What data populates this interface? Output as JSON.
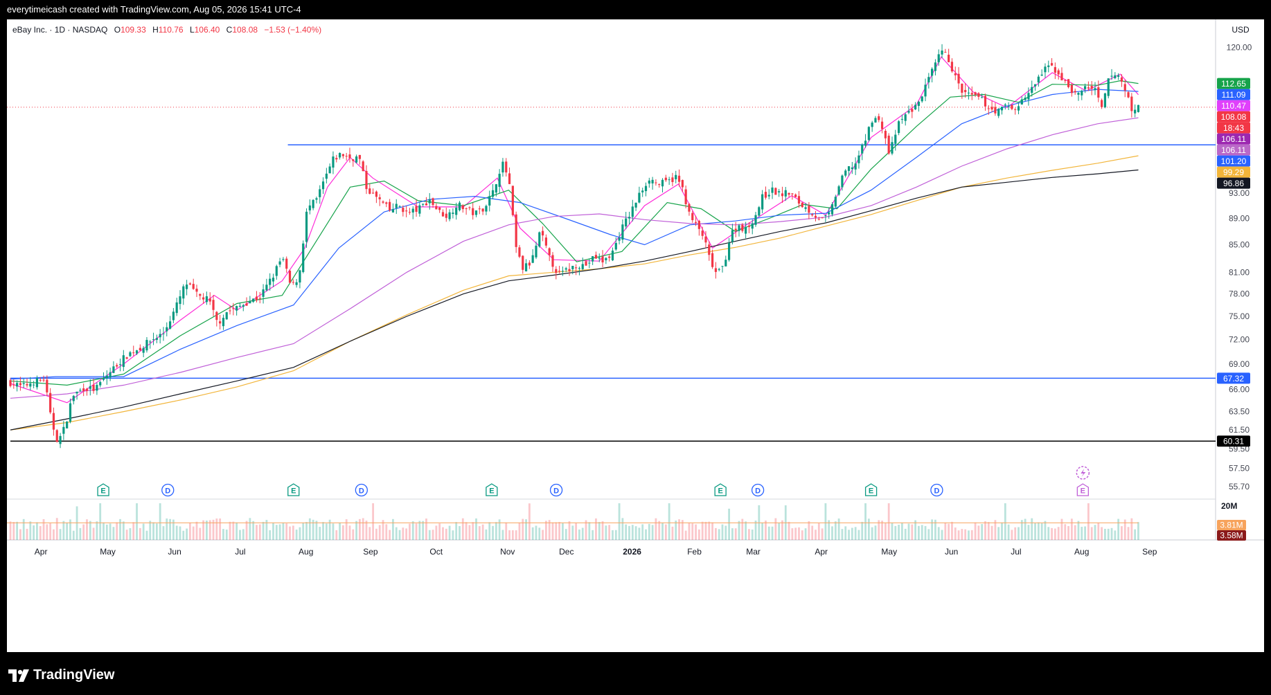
{
  "header": {
    "attribution": "everytimeicash created with TradingView.com, Aug 05, 2026 15:41 UTC-4"
  },
  "legend": {
    "symbol": "eBay Inc. · 1D · NASDAQ",
    "open_label": "O",
    "open": "109.33",
    "high_label": "H",
    "high": "110.76",
    "low_label": "L",
    "low": "106.40",
    "close_label": "C",
    "close": "108.08",
    "change": "−1.53 (−1.40%)"
  },
  "price_axis": {
    "currency": "USD"
  },
  "branding": {
    "logo_text": "TradingView",
    "logo_icon": "tradingview-logo-icon"
  },
  "chart_data": {
    "type": "candlestick",
    "symbol": "eBay Inc.",
    "interval": "1D",
    "exchange": "NASDAQ",
    "currency": "USD",
    "scale": "log",
    "y_range": [
      54.5,
      126
    ],
    "y_ticks": [
      "120.00",
      "93.00",
      "89.00",
      "85.00",
      "81.00",
      "78.00",
      "75.00",
      "72.00",
      "69.00",
      "66.00",
      "63.50",
      "61.50",
      "59.50",
      "57.50",
      "55.70"
    ],
    "x_ticks": [
      "Apr",
      "May",
      "Jun",
      "Jul",
      "Aug",
      "Sep",
      "Oct",
      "Nov",
      "Dec",
      "2026",
      "Feb",
      "Mar",
      "Apr",
      "May",
      "Jun",
      "Jul",
      "Aug",
      "Sep"
    ],
    "x_tick_pos": [
      0.027,
      0.086,
      0.145,
      0.203,
      0.261,
      0.318,
      0.376,
      0.439,
      0.491,
      0.549,
      0.604,
      0.656,
      0.716,
      0.776,
      0.831,
      0.888,
      0.946,
      1.006
    ],
    "price_path": [
      [
        0.0,
        66.8
      ],
      [
        0.01,
        66.3
      ],
      [
        0.02,
        66.9
      ],
      [
        0.03,
        67.2
      ],
      [
        0.036,
        62.5
      ],
      [
        0.042,
        60.2
      ],
      [
        0.048,
        61.8
      ],
      [
        0.055,
        65.3
      ],
      [
        0.065,
        66.2
      ],
      [
        0.075,
        66.0
      ],
      [
        0.085,
        67.6
      ],
      [
        0.095,
        69.1
      ],
      [
        0.105,
        70.3
      ],
      [
        0.115,
        71.0
      ],
      [
        0.125,
        72.0
      ],
      [
        0.135,
        72.8
      ],
      [
        0.145,
        75.8
      ],
      [
        0.155,
        79.5
      ],
      [
        0.165,
        77.8
      ],
      [
        0.175,
        77.2
      ],
      [
        0.183,
        74.0
      ],
      [
        0.19,
        75.5
      ],
      [
        0.2,
        76.1
      ],
      [
        0.21,
        77.0
      ],
      [
        0.22,
        77.5
      ],
      [
        0.232,
        80.5
      ],
      [
        0.24,
        83.2
      ],
      [
        0.248,
        78.8
      ],
      [
        0.255,
        80.5
      ],
      [
        0.262,
        90.5
      ],
      [
        0.27,
        91.8
      ],
      [
        0.278,
        95.5
      ],
      [
        0.285,
        98.6
      ],
      [
        0.292,
        99.6
      ],
      [
        0.3,
        98.9
      ],
      [
        0.308,
        99.0
      ],
      [
        0.314,
        94.0
      ],
      [
        0.32,
        92.8
      ],
      [
        0.328,
        91.5
      ],
      [
        0.335,
        90.2
      ],
      [
        0.343,
        91.1
      ],
      [
        0.35,
        89.8
      ],
      [
        0.36,
        90.4
      ],
      [
        0.37,
        92.0
      ],
      [
        0.378,
        90.1
      ],
      [
        0.386,
        89.3
      ],
      [
        0.394,
        91.2
      ],
      [
        0.402,
        90.6
      ],
      [
        0.41,
        89.7
      ],
      [
        0.418,
        90.7
      ],
      [
        0.426,
        93.1
      ],
      [
        0.434,
        98.1
      ],
      [
        0.44,
        95.5
      ],
      [
        0.446,
        84.8
      ],
      [
        0.452,
        81.5
      ],
      [
        0.46,
        82.4
      ],
      [
        0.468,
        87.0
      ],
      [
        0.476,
        83.0
      ],
      [
        0.484,
        80.7
      ],
      [
        0.492,
        81.3
      ],
      [
        0.5,
        82.1
      ],
      [
        0.508,
        82.0
      ],
      [
        0.516,
        83.2
      ],
      [
        0.524,
        82.5
      ],
      [
        0.532,
        84.0
      ],
      [
        0.54,
        87.5
      ],
      [
        0.548,
        90.0
      ],
      [
        0.556,
        93.0
      ],
      [
        0.564,
        95.5
      ],
      [
        0.572,
        94.5
      ],
      [
        0.58,
        94.8
      ],
      [
        0.588,
        95.7
      ],
      [
        0.594,
        93.5
      ],
      [
        0.6,
        89.2
      ],
      [
        0.606,
        87.8
      ],
      [
        0.612,
        86.2
      ],
      [
        0.618,
        82.5
      ],
      [
        0.624,
        80.6
      ],
      [
        0.63,
        82.0
      ],
      [
        0.636,
        86.5
      ],
      [
        0.642,
        88.0
      ],
      [
        0.65,
        87.2
      ],
      [
        0.658,
        89.5
      ],
      [
        0.664,
        92.3
      ],
      [
        0.672,
        93.5
      ],
      [
        0.68,
        92.8
      ],
      [
        0.688,
        93.1
      ],
      [
        0.696,
        91.5
      ],
      [
        0.704,
        90.4
      ],
      [
        0.712,
        89.3
      ],
      [
        0.718,
        88.7
      ],
      [
        0.724,
        89.8
      ],
      [
        0.73,
        93.5
      ],
      [
        0.738,
        96.8
      ],
      [
        0.746,
        97.9
      ],
      [
        0.754,
        101.5
      ],
      [
        0.762,
        106.5
      ],
      [
        0.77,
        104.5
      ],
      [
        0.776,
        99.5
      ],
      [
        0.784,
        104.8
      ],
      [
        0.792,
        107.0
      ],
      [
        0.8,
        108.2
      ],
      [
        0.808,
        112.0
      ],
      [
        0.816,
        116.0
      ],
      [
        0.822,
        119.2
      ],
      [
        0.828,
        117.8
      ],
      [
        0.834,
        114.0
      ],
      [
        0.84,
        111.0
      ],
      [
        0.848,
        110.2
      ],
      [
        0.856,
        109.8
      ],
      [
        0.864,
        108.0
      ],
      [
        0.872,
        107.2
      ],
      [
        0.88,
        108.5
      ],
      [
        0.886,
        107.5
      ],
      [
        0.894,
        109.5
      ],
      [
        0.902,
        111.5
      ],
      [
        0.91,
        114.5
      ],
      [
        0.918,
        116.3
      ],
      [
        0.926,
        114.5
      ],
      [
        0.934,
        112.0
      ],
      [
        0.942,
        110.2
      ],
      [
        0.95,
        112.2
      ],
      [
        0.958,
        111.2
      ],
      [
        0.964,
        107.5
      ],
      [
        0.97,
        113.8
      ],
      [
        0.978,
        114.5
      ],
      [
        0.986,
        110.5
      ],
      [
        0.992,
        106.7
      ],
      [
        0.996,
        108.08
      ]
    ],
    "moving_averages": [
      {
        "color": "#ff2bd8",
        "values": [
          [
            0,
            66.7
          ],
          [
            0.05,
            64.5
          ],
          [
            0.1,
            69.0
          ],
          [
            0.15,
            74.5
          ],
          [
            0.18,
            77.8
          ],
          [
            0.2,
            75.8
          ],
          [
            0.24,
            79.8
          ],
          [
            0.26,
            84.5
          ],
          [
            0.28,
            94.0
          ],
          [
            0.3,
            99.0
          ],
          [
            0.32,
            95.5
          ],
          [
            0.36,
            90.8
          ],
          [
            0.4,
            90.8
          ],
          [
            0.43,
            95.5
          ],
          [
            0.45,
            87.5
          ],
          [
            0.48,
            82.8
          ],
          [
            0.52,
            82.6
          ],
          [
            0.56,
            91.0
          ],
          [
            0.59,
            94.5
          ],
          [
            0.62,
            84.5
          ],
          [
            0.65,
            88.0
          ],
          [
            0.69,
            92.6
          ],
          [
            0.72,
            89.5
          ],
          [
            0.76,
            102.5
          ],
          [
            0.8,
            108.5
          ],
          [
            0.822,
            118.0
          ],
          [
            0.85,
            111.0
          ],
          [
            0.88,
            108.0
          ],
          [
            0.92,
            114.8
          ],
          [
            0.95,
            111.2
          ],
          [
            0.98,
            114.5
          ],
          [
            0.996,
            110.47
          ]
        ]
      },
      {
        "color": "#16a34a",
        "values": [
          [
            0,
            67.0
          ],
          [
            0.05,
            66.5
          ],
          [
            0.1,
            67.8
          ],
          [
            0.15,
            72.5
          ],
          [
            0.2,
            76.7
          ],
          [
            0.24,
            77.8
          ],
          [
            0.27,
            85.5
          ],
          [
            0.3,
            94.0
          ],
          [
            0.33,
            95.0
          ],
          [
            0.36,
            91.8
          ],
          [
            0.4,
            91.0
          ],
          [
            0.44,
            93.5
          ],
          [
            0.47,
            88.2
          ],
          [
            0.5,
            82.5
          ],
          [
            0.54,
            84.0
          ],
          [
            0.58,
            91.5
          ],
          [
            0.61,
            90.5
          ],
          [
            0.64,
            87.0
          ],
          [
            0.67,
            89.0
          ],
          [
            0.7,
            91.2
          ],
          [
            0.73,
            90.5
          ],
          [
            0.76,
            97.0
          ],
          [
            0.8,
            104.5
          ],
          [
            0.83,
            110.0
          ],
          [
            0.86,
            110.5
          ],
          [
            0.89,
            109.0
          ],
          [
            0.92,
            112.5
          ],
          [
            0.96,
            112.3
          ],
          [
            0.98,
            113.2
          ],
          [
            0.996,
            112.65
          ]
        ]
      },
      {
        "color": "#2962ff",
        "values": [
          [
            0,
            67.2
          ],
          [
            0.04,
            67.5
          ],
          [
            0.1,
            67.5
          ],
          [
            0.15,
            70.8
          ],
          [
            0.2,
            73.8
          ],
          [
            0.25,
            76.5
          ],
          [
            0.29,
            84.5
          ],
          [
            0.33,
            90.0
          ],
          [
            0.37,
            92.0
          ],
          [
            0.41,
            92.5
          ],
          [
            0.45,
            91.5
          ],
          [
            0.49,
            89.0
          ],
          [
            0.53,
            86.5
          ],
          [
            0.56,
            85.0
          ],
          [
            0.6,
            88.0
          ],
          [
            0.64,
            88.6
          ],
          [
            0.68,
            89.5
          ],
          [
            0.72,
            89.8
          ],
          [
            0.76,
            93.5
          ],
          [
            0.8,
            99.0
          ],
          [
            0.84,
            105.0
          ],
          [
            0.88,
            108.3
          ],
          [
            0.92,
            110.5
          ],
          [
            0.96,
            111.5
          ],
          [
            0.996,
            111.09
          ]
        ]
      },
      {
        "color": "#c060d8",
        "values": [
          [
            0,
            65.0
          ],
          [
            0.05,
            65.5
          ],
          [
            0.1,
            66.5
          ],
          [
            0.15,
            68.0
          ],
          [
            0.2,
            69.8
          ],
          [
            0.25,
            71.5
          ],
          [
            0.3,
            76.0
          ],
          [
            0.35,
            81.0
          ],
          [
            0.4,
            85.5
          ],
          [
            0.44,
            88.0
          ],
          [
            0.48,
            89.3
          ],
          [
            0.52,
            89.7
          ],
          [
            0.56,
            88.8
          ],
          [
            0.6,
            88.2
          ],
          [
            0.64,
            88.0
          ],
          [
            0.68,
            88.5
          ],
          [
            0.72,
            89.2
          ],
          [
            0.76,
            91.0
          ],
          [
            0.8,
            94.0
          ],
          [
            0.84,
            97.5
          ],
          [
            0.88,
            100.5
          ],
          [
            0.92,
            103.0
          ],
          [
            0.96,
            105.0
          ],
          [
            0.996,
            106.11
          ]
        ]
      },
      {
        "color": "#f2b53a",
        "values": [
          [
            0,
            61.5
          ],
          [
            0.05,
            62.3
          ],
          [
            0.1,
            63.5
          ],
          [
            0.15,
            64.8
          ],
          [
            0.2,
            66.3
          ],
          [
            0.25,
            68.2
          ],
          [
            0.3,
            71.8
          ],
          [
            0.35,
            75.2
          ],
          [
            0.4,
            78.5
          ],
          [
            0.44,
            80.5
          ],
          [
            0.48,
            81.0
          ],
          [
            0.52,
            81.5
          ],
          [
            0.56,
            82.2
          ],
          [
            0.6,
            83.5
          ],
          [
            0.64,
            84.6
          ],
          [
            0.68,
            86.0
          ],
          [
            0.72,
            87.8
          ],
          [
            0.76,
            89.6
          ],
          [
            0.8,
            91.8
          ],
          [
            0.84,
            94.0
          ],
          [
            0.88,
            95.5
          ],
          [
            0.92,
            96.8
          ],
          [
            0.96,
            98.0
          ],
          [
            0.996,
            99.29
          ]
        ]
      },
      {
        "color": "#131722",
        "values": [
          [
            0,
            61.5
          ],
          [
            0.05,
            62.7
          ],
          [
            0.1,
            64.0
          ],
          [
            0.15,
            65.5
          ],
          [
            0.2,
            67.0
          ],
          [
            0.25,
            68.6
          ],
          [
            0.3,
            71.8
          ],
          [
            0.35,
            75.0
          ],
          [
            0.4,
            78.0
          ],
          [
            0.44,
            79.8
          ],
          [
            0.48,
            80.6
          ],
          [
            0.52,
            81.5
          ],
          [
            0.56,
            82.6
          ],
          [
            0.6,
            84.0
          ],
          [
            0.64,
            85.5
          ],
          [
            0.68,
            87.0
          ],
          [
            0.72,
            88.3
          ],
          [
            0.76,
            90.2
          ],
          [
            0.8,
            92.2
          ],
          [
            0.84,
            94.0
          ],
          [
            0.88,
            94.8
          ],
          [
            0.92,
            95.6
          ],
          [
            0.96,
            96.2
          ],
          [
            0.996,
            96.86
          ]
        ]
      }
    ],
    "horizontal_lines": [
      {
        "price": 101.2,
        "color": "#2962ff",
        "x_start": 0.245,
        "label": "101.20"
      },
      {
        "price": 67.32,
        "color": "#2962ff",
        "x_start": 0.0,
        "label": "67.32"
      },
      {
        "price": 60.31,
        "color": "#000000",
        "x_start": 0.0,
        "label": "60.31"
      }
    ],
    "last_price_line": {
      "price": 108.08,
      "color": "#f23645"
    },
    "price_labels": [
      {
        "text": "112.65",
        "bg": "#16a34a",
        "price": 112.65
      },
      {
        "text": "111.09",
        "bg": "#2962ff",
        "price": 111.09
      },
      {
        "text": "110.47",
        "bg": "#e040fb",
        "price": 110.47
      },
      {
        "text": "108.08",
        "bg": "#f23645",
        "price": 108.08
      },
      {
        "text": "18:43",
        "bg": "#f23645",
        "price": 107.05
      },
      {
        "text": "106.11",
        "bg": "#9c27b0",
        "price": 106.11
      },
      {
        "text": "106.11",
        "bg": "#ba68c8",
        "price": 105.0
      },
      {
        "text": "101.20",
        "bg": "#2962ff",
        "price": 101.2
      },
      {
        "text": "99.29",
        "bg": "#f2b53a",
        "price": 99.29
      },
      {
        "text": "96.86",
        "bg": "#131722",
        "price": 96.86
      },
      {
        "text": "67.32",
        "bg": "#2962ff",
        "price": 67.32
      },
      {
        "text": "60.31",
        "bg": "#000000",
        "price": 60.31
      }
    ],
    "events": [
      {
        "type": "E",
        "x": 0.082
      },
      {
        "type": "D",
        "x": 0.139
      },
      {
        "type": "E",
        "x": 0.25
      },
      {
        "type": "D",
        "x": 0.31
      },
      {
        "type": "E",
        "x": 0.425
      },
      {
        "type": "D",
        "x": 0.482
      },
      {
        "type": "E",
        "x": 0.627
      },
      {
        "type": "D",
        "x": 0.66
      },
      {
        "type": "E",
        "x": 0.76
      },
      {
        "type": "D",
        "x": 0.818
      },
      {
        "type": "E",
        "x": 0.947
      }
    ],
    "volume": {
      "axis_label": "20M",
      "labels": [
        {
          "text": "3.81M",
          "bg": "#f7a35c"
        },
        {
          "text": "3.58M",
          "bg": "#8b1a1a"
        }
      ],
      "ma_level": 0.21
    }
  }
}
